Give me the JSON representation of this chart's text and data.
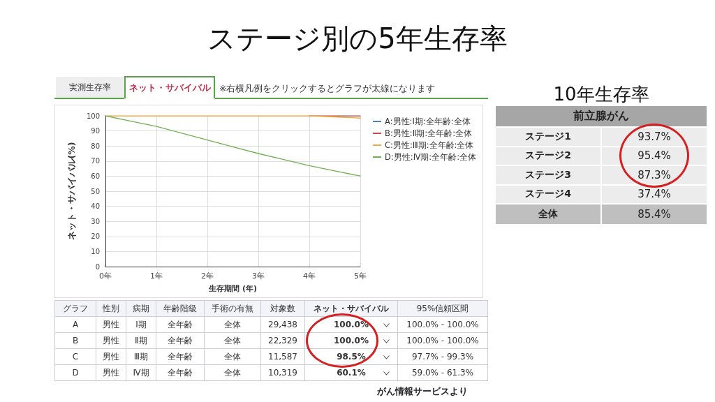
{
  "chart_data": [
    {
      "type": "line",
      "title": "ステージ別の5年生存率",
      "xlabel": "生存期間 (年)",
      "ylabel": "ネット・サバイバル(%)",
      "x": [
        0,
        0.5,
        1,
        1.5,
        2,
        2.5,
        3,
        3.5,
        4,
        4.5,
        5
      ],
      "series": [
        {
          "name": "A:男性:Ⅰ期:全年齢:全体",
          "color": "#4f81bd",
          "values": [
            null,
            null,
            null,
            null,
            null,
            null,
            null,
            null,
            null,
            null,
            null
          ]
        },
        {
          "name": "B:男性:Ⅱ期:全年齢:全体",
          "color": "#c0504d",
          "values": [
            null,
            null,
            null,
            null,
            null,
            null,
            null,
            null,
            100,
            100,
            100
          ]
        },
        {
          "name": "C:男性:Ⅲ期:全年齢:全体",
          "color": "#f5a637",
          "values": [
            100,
            100,
            100,
            100,
            100,
            100,
            100,
            100,
            100,
            99.3,
            98.5
          ]
        },
        {
          "name": "D:男性:Ⅳ期:全年齢:全体",
          "color": "#70b052",
          "values": [
            100,
            96.5,
            93,
            88.5,
            84,
            79.5,
            75,
            71,
            67,
            63.5,
            60.1
          ]
        }
      ],
      "xlim": [
        0,
        5
      ],
      "xticks": [
        {
          "value": 0,
          "label": "0年"
        },
        {
          "value": 1,
          "label": "1年"
        },
        {
          "value": 2,
          "label": "2年"
        },
        {
          "value": 3,
          "label": "3年"
        },
        {
          "value": 4,
          "label": "4年"
        },
        {
          "value": 5,
          "label": "5年"
        }
      ],
      "ylim": [
        0,
        100
      ],
      "yticks": [
        0,
        10,
        20,
        30,
        40,
        50,
        60,
        70,
        80,
        90,
        100
      ],
      "grid": true,
      "legend": "top right",
      "marker": "none",
      "line_style": "solid",
      "annotations": [
        "実測生存率",
        "ネット・サバイバル",
        "※右横凡例をクリックするとグラフが太線になります",
        "がん情報サービスより"
      ]
    },
    {
      "type": "other",
      "annotations": [
        "グラフ",
        "性別",
        "病期",
        "年齢階級",
        "手術の有無",
        "対象数",
        "ネット・サバイバル",
        "95%信頼区間",
        "A",
        "男性",
        "Ⅰ期",
        "全年齢",
        "全体",
        "29,438",
        "100.0%",
        "100.0% - 100.0%",
        "B",
        "男性",
        "Ⅱ期",
        "全年齢",
        "全体",
        "22,329",
        "100.0%",
        "100.0% - 100.0%",
        "C",
        "男性",
        "Ⅲ期",
        "全年齢",
        "全体",
        "11,587",
        "98.5%",
        "97.7% - 99.3%",
        "D",
        "男性",
        "Ⅳ期",
        "全年齢",
        "全体",
        "10,319",
        "60.1%",
        "59.0% - 61.3%"
      ]
    },
    {
      "type": "other",
      "title": "10年生存率",
      "annotations": [
        "前立腺がん",
        "ステージ1",
        "93.7%",
        "ステージ2",
        "95.4%",
        "ステージ3",
        "87.3%",
        "ステージ4",
        "37.4%",
        "全体",
        "85.4%"
      ]
    }
  ]
}
